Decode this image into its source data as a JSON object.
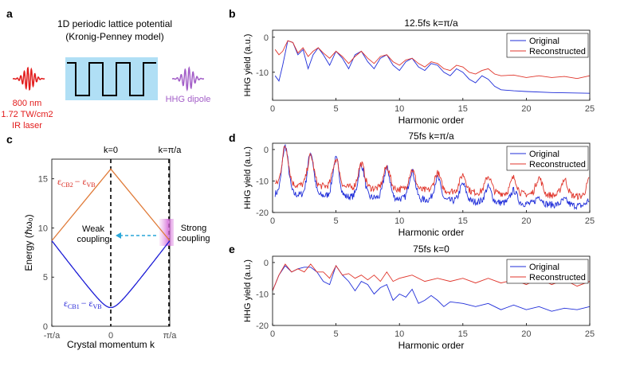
{
  "panel_a": {
    "label": "a",
    "title_line1": "1D periodic lattice potential",
    "title_line2": "(Kronig-Penney model)",
    "laser_line1": "800 nm",
    "laser_line2": "1.72 TW/cm2",
    "laser_line3": "IR laser",
    "dipole_label": "HHG dipole",
    "colors": {
      "laser": "#e21b1b",
      "dipole": "#a35ec8",
      "lattice_bg": "#b0dff5"
    }
  },
  "legend": {
    "original": "Original",
    "reconstructed": "Reconstructed"
  },
  "colors": {
    "original": "#1f2dd9",
    "reconstructed": "#e0352b",
    "cb2": "#e07b39",
    "cb1": "#1c1cd6",
    "arrow": "#29a6d8"
  },
  "chart_data": [
    {
      "type": "line",
      "label": "b",
      "title": "12.5fs k=π/a",
      "xlabel": "Harmonic order",
      "ylabel": "HHG yield (a.u.)",
      "xlim": [
        0,
        25
      ],
      "ylim": [
        -18,
        2
      ],
      "xticks": [
        0,
        5,
        10,
        15,
        20,
        25
      ],
      "yticks": [
        0,
        -10
      ],
      "series": [
        {
          "name": "Original",
          "points": [
            [
              0.2,
              -11
            ],
            [
              0.5,
              -12.5
            ],
            [
              0.8,
              -8
            ],
            [
              1.2,
              -1
            ],
            [
              1.6,
              -1.5
            ],
            [
              2,
              -5
            ],
            [
              2.4,
              -3.5
            ],
            [
              2.8,
              -9
            ],
            [
              3.2,
              -5
            ],
            [
              3.6,
              -3
            ],
            [
              4,
              -5
            ],
            [
              4.5,
              -8
            ],
            [
              5,
              -4
            ],
            [
              5.5,
              -6
            ],
            [
              6,
              -9
            ],
            [
              6.5,
              -5
            ],
            [
              7,
              -4
            ],
            [
              7.5,
              -7
            ],
            [
              8,
              -9
            ],
            [
              8.5,
              -6
            ],
            [
              9,
              -5
            ],
            [
              9.5,
              -8
            ],
            [
              10,
              -9.5
            ],
            [
              10.5,
              -7
            ],
            [
              11,
              -6
            ],
            [
              11.5,
              -8.5
            ],
            [
              12,
              -9.5
            ],
            [
              12.5,
              -7.5
            ],
            [
              13,
              -8
            ],
            [
              13.5,
              -10
            ],
            [
              14,
              -11
            ],
            [
              14.5,
              -9
            ],
            [
              15,
              -10
            ],
            [
              15.5,
              -12
            ],
            [
              16,
              -13
            ],
            [
              16.5,
              -11
            ],
            [
              17,
              -12
            ],
            [
              17.5,
              -14
            ],
            [
              18,
              -15
            ],
            [
              19,
              -15.3
            ],
            [
              20,
              -15.5
            ],
            [
              22,
              -15.8
            ],
            [
              25,
              -16
            ]
          ]
        },
        {
          "name": "Reconstructed",
          "points": [
            [
              0.2,
              -3.5
            ],
            [
              0.5,
              -5
            ],
            [
              0.8,
              -4
            ],
            [
              1.2,
              -1
            ],
            [
              1.6,
              -1.5
            ],
            [
              2,
              -4.5
            ],
            [
              2.4,
              -3
            ],
            [
              2.8,
              -5.5
            ],
            [
              3.2,
              -4
            ],
            [
              3.6,
              -3
            ],
            [
              4,
              -4.5
            ],
            [
              4.5,
              -6
            ],
            [
              5,
              -4
            ],
            [
              5.5,
              -5.5
            ],
            [
              6,
              -7.5
            ],
            [
              6.5,
              -5.5
            ],
            [
              7,
              -4
            ],
            [
              7.5,
              -6
            ],
            [
              8,
              -7.5
            ],
            [
              8.5,
              -5.5
            ],
            [
              9,
              -5
            ],
            [
              9.5,
              -7
            ],
            [
              10,
              -8
            ],
            [
              10.5,
              -6.5
            ],
            [
              11,
              -6
            ],
            [
              11.5,
              -7.5
            ],
            [
              12,
              -8.5
            ],
            [
              12.5,
              -7
            ],
            [
              13,
              -7.5
            ],
            [
              13.5,
              -9
            ],
            [
              14,
              -9.5
            ],
            [
              14.5,
              -8
            ],
            [
              15,
              -8.5
            ],
            [
              15.5,
              -10
            ],
            [
              16,
              -10.5
            ],
            [
              16.5,
              -9.5
            ],
            [
              17,
              -9
            ],
            [
              17.5,
              -10.5
            ],
            [
              18,
              -11
            ],
            [
              19,
              -10.8
            ],
            [
              20,
              -11.5
            ],
            [
              21,
              -11
            ],
            [
              22,
              -11.5
            ],
            [
              23,
              -11.2
            ],
            [
              24,
              -11.8
            ],
            [
              25,
              -11
            ]
          ]
        }
      ]
    },
    {
      "type": "line",
      "label": "d",
      "title": "75fs k=π/a",
      "xlabel": "Harmonic order",
      "ylabel": "HHG yield (a.u.)",
      "xlim": [
        0,
        25
      ],
      "ylim": [
        -20,
        2
      ],
      "xticks": [
        0,
        5,
        10,
        15,
        20,
        25
      ],
      "yticks": [
        0,
        -10,
        -20
      ],
      "series": [
        {
          "name": "Original",
          "peaks": [
            1,
            3,
            5,
            7,
            9,
            11,
            13,
            15,
            17,
            19,
            21,
            23,
            25
          ],
          "peak_values": [
            1,
            -1,
            -3,
            -5,
            -6,
            -7,
            -9,
            -11,
            -12,
            -13,
            -15,
            -16,
            -16
          ],
          "floor": [
            -14,
            -18
          ]
        },
        {
          "name": "Reconstructed",
          "peaks": [
            1,
            3,
            5,
            7,
            9,
            11,
            13,
            15,
            17,
            19,
            21,
            23,
            25
          ],
          "peak_values": [
            1,
            -2,
            -3,
            -4.5,
            -5.5,
            -6.5,
            -7.5,
            -8,
            -8.5,
            -9,
            -9,
            -9.5,
            -9.5
          ],
          "floor": [
            -11,
            -15
          ]
        }
      ]
    },
    {
      "type": "line",
      "label": "e",
      "title": "75fs k=0",
      "xlabel": "Harmonic order",
      "ylabel": "HHG yield (a.u.)",
      "xlim": [
        0,
        25
      ],
      "ylim": [
        -20,
        2
      ],
      "xticks": [
        0,
        5,
        10,
        15,
        20,
        25
      ],
      "yticks": [
        0,
        -10,
        -20
      ],
      "series": [
        {
          "name": "Original",
          "points": [
            [
              0,
              -9
            ],
            [
              0.5,
              -4
            ],
            [
              1,
              -1
            ],
            [
              1.5,
              -3
            ],
            [
              2,
              -2
            ],
            [
              2.5,
              -1.5
            ],
            [
              3,
              -1.5
            ],
            [
              3.5,
              -3
            ],
            [
              4,
              -6
            ],
            [
              4.5,
              -7
            ],
            [
              5,
              -1
            ],
            [
              5.5,
              -4
            ],
            [
              6,
              -6
            ],
            [
              6.5,
              -9
            ],
            [
              7,
              -6
            ],
            [
              7.5,
              -7
            ],
            [
              8,
              -10
            ],
            [
              8.5,
              -8
            ],
            [
              9,
              -7
            ],
            [
              9.5,
              -12
            ],
            [
              10,
              -10
            ],
            [
              10.5,
              -11
            ],
            [
              11,
              -8.5
            ],
            [
              11.5,
              -13
            ],
            [
              12,
              -12
            ],
            [
              12.5,
              -10.5
            ],
            [
              13,
              -12
            ],
            [
              13.5,
              -14
            ],
            [
              14,
              -12.5
            ],
            [
              15,
              -13
            ],
            [
              16,
              -14
            ],
            [
              17,
              -13
            ],
            [
              18,
              -15
            ],
            [
              19,
              -13.5
            ],
            [
              20,
              -15
            ],
            [
              21,
              -14
            ],
            [
              22,
              -15.5
            ],
            [
              23,
              -14.5
            ],
            [
              24,
              -15
            ],
            [
              25,
              -14
            ]
          ]
        },
        {
          "name": "Reconstructed",
          "points": [
            [
              0,
              -9
            ],
            [
              0.5,
              -4
            ],
            [
              1,
              -0.5
            ],
            [
              1.5,
              -3
            ],
            [
              2,
              -2
            ],
            [
              2.5,
              -3
            ],
            [
              3,
              -0.5
            ],
            [
              3.5,
              -3
            ],
            [
              4,
              -3
            ],
            [
              4.5,
              -5
            ],
            [
              5,
              -1
            ],
            [
              5.5,
              -4
            ],
            [
              6,
              -3.5
            ],
            [
              6.5,
              -5
            ],
            [
              7,
              -4
            ],
            [
              7.5,
              -5.5
            ],
            [
              8,
              -4
            ],
            [
              8.5,
              -6
            ],
            [
              9,
              -3
            ],
            [
              9.5,
              -6
            ],
            [
              10,
              -5
            ],
            [
              11,
              -4
            ],
            [
              12,
              -6
            ],
            [
              13,
              -5
            ],
            [
              14,
              -6
            ],
            [
              15,
              -5
            ],
            [
              16,
              -6.5
            ],
            [
              17,
              -5
            ],
            [
              18,
              -6.5
            ],
            [
              19,
              -5.5
            ],
            [
              20,
              -7
            ],
            [
              21,
              -5
            ],
            [
              22,
              -7
            ],
            [
              23,
              -5.5
            ],
            [
              24,
              -7.5
            ],
            [
              25,
              -6
            ]
          ]
        }
      ]
    },
    {
      "type": "line",
      "label": "c",
      "xlabel": "Crystal momentum k",
      "ylabel": "Energy (ℏω₀)",
      "xlim": [
        -1,
        1
      ],
      "ylim": [
        0,
        17
      ],
      "xtick_labels": [
        "-π/a",
        "0",
        "π/a"
      ],
      "yticks": [
        0,
        5,
        10,
        15
      ],
      "top_labels": [
        "k=0",
        "k=π/a"
      ],
      "series": [
        {
          "name": "εCB2 − εVB",
          "k": [
            -1,
            0,
            1
          ],
          "values": [
            8.7,
            16,
            8.7
          ]
        },
        {
          "name": "εCB1 − εVB",
          "k": [
            -1,
            -0.5,
            0,
            0.5,
            1
          ],
          "values": [
            8.7,
            4.6,
            1.9,
            4.6,
            8.7
          ]
        }
      ],
      "annotations": {
        "weak": [
          "Weak",
          "coupling"
        ],
        "strong": [
          "Strong",
          "coupling"
        ]
      },
      "band_labels": {
        "cb2_a": "ε",
        "cb2_a_sub": "CB2",
        "cb2_b": "− ε",
        "cb2_b_sub": "VB",
        "cb1_a": "ε",
        "cb1_a_sub": "CB1",
        "cb1_b": "− ε",
        "cb1_b_sub": "VB"
      }
    }
  ]
}
